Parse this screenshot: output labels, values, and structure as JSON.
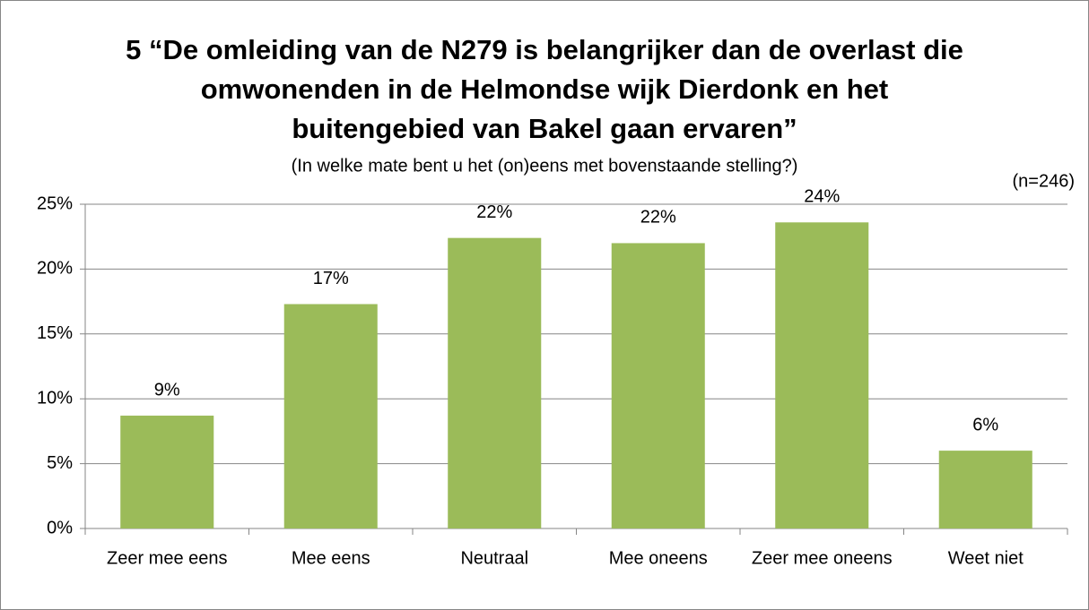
{
  "chart_data": {
    "type": "bar",
    "title": "5 “De omleiding van de N279 is belangrijker dan de overlast die omwonenden in de Helmondse wijk Dierdonk en het buitengebied van Bakel gaan ervaren”",
    "subtitle": "(In welke mate bent u het (on)eens met bovenstaande stelling?)",
    "annotation": "(n=246)",
    "categories": [
      "Zeer mee eens",
      "Mee eens",
      "Neutraal",
      "Mee oneens",
      "Zeer mee oneens",
      "Weet niet"
    ],
    "values": [
      8.7,
      17.3,
      22.4,
      22.0,
      23.6,
      6.0
    ],
    "value_labels": [
      "9%",
      "17%",
      "22%",
      "22%",
      "24%",
      "6%"
    ],
    "color": "#9bbb59",
    "ylim": [
      0,
      25
    ],
    "yticks": [
      {
        "value": 0,
        "label": "0%"
      },
      {
        "value": 5,
        "label": "5%"
      },
      {
        "value": 10,
        "label": "10%"
      },
      {
        "value": 15,
        "label": "15%"
      },
      {
        "value": 20,
        "label": "20%"
      },
      {
        "value": 25,
        "label": "25%"
      }
    ],
    "grid": true
  }
}
